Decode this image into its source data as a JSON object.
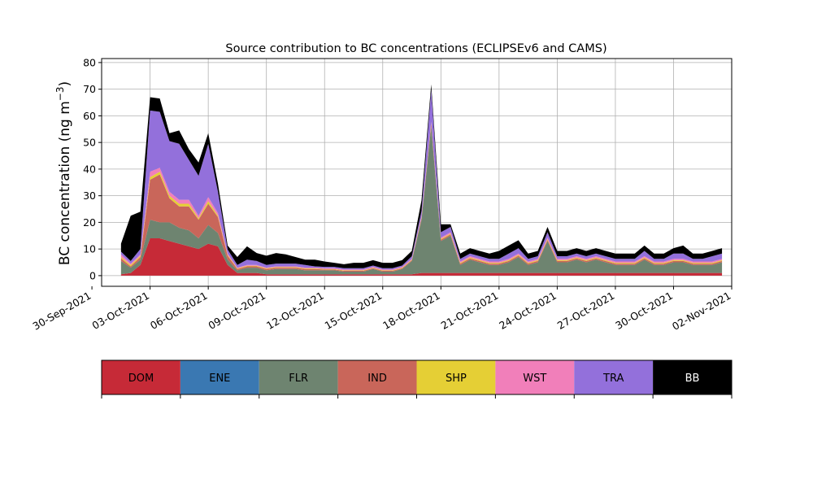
{
  "chart_data": {
    "type": "area",
    "stacked": true,
    "title": "Source contribution to BC concentrations (ECLIPSEv6 and CAMS)",
    "ylabel": "BC concentration (ng m",
    "ylabel_sup": "−3",
    "ylabel_close": ")",
    "xlabel": "",
    "ylim": [
      -4,
      81.5
    ],
    "xlim": [
      "2021-09-30T12:00",
      "2021-11-02T00:00"
    ],
    "grid": true,
    "y_ticks": [
      0,
      10,
      20,
      30,
      40,
      50,
      60,
      70,
      80
    ],
    "x_ticks": [
      "2021-09-30",
      "2021-10-03",
      "2021-10-06",
      "2021-10-09",
      "2021-10-12",
      "2021-10-15",
      "2021-10-18",
      "2021-10-21",
      "2021-10-24",
      "2021-10-27",
      "2021-10-30",
      "2021-11-02"
    ],
    "x_tick_labels": [
      "30-Sep-2021",
      "03-Oct-2021",
      "06-Oct-2021",
      "09-Oct-2021",
      "12-Oct-2021",
      "15-Oct-2021",
      "18-Oct-2021",
      "21-Oct-2021",
      "24-Oct-2021",
      "27-Oct-2021",
      "30-Oct-2021",
      "02-Nov-2021"
    ],
    "x": [
      "2021-10-01T12:00",
      "2021-10-02T00:00",
      "2021-10-02T12:00",
      "2021-10-03T00:00",
      "2021-10-03T12:00",
      "2021-10-04T00:00",
      "2021-10-04T12:00",
      "2021-10-05T00:00",
      "2021-10-05T12:00",
      "2021-10-06T00:00",
      "2021-10-06T12:00",
      "2021-10-07T00:00",
      "2021-10-07T12:00",
      "2021-10-08T00:00",
      "2021-10-08T12:00",
      "2021-10-09T00:00",
      "2021-10-09T12:00",
      "2021-10-10T00:00",
      "2021-10-10T12:00",
      "2021-10-11T00:00",
      "2021-10-11T12:00",
      "2021-10-12T00:00",
      "2021-10-12T12:00",
      "2021-10-13T00:00",
      "2021-10-13T12:00",
      "2021-10-14T00:00",
      "2021-10-14T12:00",
      "2021-10-15T00:00",
      "2021-10-15T12:00",
      "2021-10-16T00:00",
      "2021-10-16T12:00",
      "2021-10-17T00:00",
      "2021-10-17T12:00",
      "2021-10-18T00:00",
      "2021-10-18T12:00",
      "2021-10-19T00:00",
      "2021-10-19T12:00",
      "2021-10-20T00:00",
      "2021-10-20T12:00",
      "2021-10-21T00:00",
      "2021-10-21T12:00",
      "2021-10-22T00:00",
      "2021-10-22T12:00",
      "2021-10-23T00:00",
      "2021-10-23T12:00",
      "2021-10-24T00:00",
      "2021-10-24T12:00",
      "2021-10-25T00:00",
      "2021-10-25T12:00",
      "2021-10-26T00:00",
      "2021-10-26T12:00",
      "2021-10-27T00:00",
      "2021-10-27T12:00",
      "2021-10-28T00:00",
      "2021-10-28T12:00",
      "2021-10-29T00:00",
      "2021-10-29T12:00",
      "2021-10-30T00:00",
      "2021-10-30T12:00",
      "2021-10-31T00:00",
      "2021-10-31T12:00",
      "2021-11-01T00:00",
      "2021-11-01T12:00"
    ],
    "series": [
      {
        "name": "DOM",
        "color": "#c62a37",
        "values": [
          0.5,
          1,
          4,
          14,
          14,
          13,
          12,
          11,
          10,
          12,
          11,
          4,
          1,
          1,
          1,
          0.5,
          0.5,
          0.5,
          0.5,
          0.5,
          0.5,
          0.5,
          0.5,
          0.5,
          0.5,
          0.5,
          0.5,
          0.5,
          0.5,
          0.5,
          0.5,
          1,
          1,
          1,
          1,
          1,
          1,
          1,
          1,
          1,
          1,
          1,
          1,
          1,
          1,
          1,
          1,
          1,
          1,
          1,
          1,
          1,
          1,
          1,
          1,
          1,
          1,
          1,
          1,
          1,
          1,
          1,
          1
        ]
      },
      {
        "name": "ENE",
        "color": "#3a78b2",
        "values": [
          0,
          0,
          0,
          0,
          0,
          0,
          0,
          0,
          0,
          0,
          0,
          0,
          0,
          0,
          0,
          0,
          0,
          0,
          0,
          0,
          0,
          0,
          0,
          0,
          0,
          0,
          0,
          0,
          0,
          0,
          0,
          0,
          0,
          0,
          0,
          0,
          0,
          0,
          0,
          0,
          0,
          0,
          0,
          0,
          0,
          0,
          0,
          0,
          0,
          0,
          0,
          0,
          0,
          0,
          0,
          0,
          0,
          0,
          0,
          0,
          0,
          0,
          0
        ]
      },
      {
        "name": "FLR",
        "color": "#6e8470",
        "values": [
          5,
          2,
          2,
          7,
          6,
          7,
          6,
          6,
          4,
          7,
          5,
          2,
          1,
          2,
          2,
          1.5,
          2,
          2,
          2,
          1.5,
          1.5,
          1.5,
          1.5,
          1,
          1,
          1,
          2,
          1,
          1,
          2,
          5,
          20,
          55,
          12,
          14,
          3,
          5,
          4,
          3,
          3,
          4,
          6,
          3,
          4,
          12,
          4,
          4,
          5,
          4,
          5,
          4,
          3,
          3,
          3,
          5,
          3,
          3,
          4,
          4,
          3,
          3,
          3,
          4
        ]
      },
      {
        "name": "IND",
        "color": "#c9665a",
        "values": [
          1,
          0.5,
          1,
          15,
          18,
          9,
          8,
          9,
          7,
          8,
          6,
          1.5,
          0.5,
          0.5,
          0.5,
          0.5,
          0.5,
          0.5,
          0.5,
          0.5,
          0.5,
          0.3,
          0.3,
          0.3,
          0.3,
          0.3,
          0.3,
          0.3,
          0.3,
          0.3,
          0.3,
          0.5,
          1,
          0.5,
          0.5,
          0.5,
          0.5,
          0.5,
          0.5,
          0.5,
          0.5,
          0.5,
          0.5,
          0.5,
          0.5,
          0.5,
          0.5,
          0.5,
          0.5,
          0.5,
          0.5,
          0.5,
          0.5,
          0.5,
          0.5,
          0.5,
          0.5,
          0.5,
          0.5,
          0.5,
          0.5,
          0.5,
          0.5
        ]
      },
      {
        "name": "SHP",
        "color": "#e5cf35",
        "values": [
          0.5,
          0.5,
          0.5,
          1,
          1,
          1,
          1,
          1,
          0.5,
          1,
          0.5,
          0.3,
          0.2,
          0.2,
          0.2,
          0.2,
          0.2,
          0.2,
          0.2,
          0.2,
          0.2,
          0.2,
          0.2,
          0.2,
          0.2,
          0.2,
          0.2,
          0.2,
          0.2,
          0.2,
          0.2,
          0.3,
          0.3,
          0.3,
          0.3,
          0.3,
          0.3,
          0.3,
          0.3,
          0.3,
          0.3,
          0.3,
          0.3,
          0.3,
          0.3,
          0.3,
          0.3,
          0.3,
          0.3,
          0.3,
          0.3,
          0.3,
          0.3,
          0.3,
          0.3,
          0.3,
          0.3,
          0.3,
          0.3,
          0.3,
          0.3,
          0.3,
          0.3
        ]
      },
      {
        "name": "WST",
        "color": "#f17fba",
        "values": [
          1,
          0.5,
          0.5,
          2,
          1.5,
          1.5,
          1.5,
          1.5,
          1,
          1.5,
          1,
          0.5,
          0.3,
          0.3,
          0.3,
          0.3,
          0.3,
          0.3,
          0.3,
          0.3,
          0.3,
          0.3,
          0.3,
          0.3,
          0.3,
          0.3,
          0.3,
          0.3,
          0.3,
          0.3,
          0.3,
          0.5,
          0.5,
          0.5,
          0.5,
          0.5,
          0.5,
          0.5,
          0.5,
          0.5,
          0.5,
          0.5,
          0.5,
          0.5,
          0.5,
          0.5,
          0.5,
          0.5,
          0.5,
          0.5,
          0.5,
          0.5,
          0.5,
          0.5,
          0.5,
          0.5,
          0.5,
          0.5,
          0.5,
          0.5,
          0.5,
          0.5,
          0.5
        ]
      },
      {
        "name": "TRA",
        "color": "#9370db",
        "values": [
          1,
          1,
          2,
          23,
          21,
          19,
          21,
          15,
          15,
          20,
          8,
          1.5,
          1,
          2,
          1.5,
          1,
          1,
          1,
          1,
          1,
          0.5,
          0.5,
          0.5,
          0.5,
          0.5,
          0.5,
          0.5,
          0.5,
          0.5,
          0.5,
          1,
          2,
          12,
          2,
          2,
          1,
          1,
          1,
          1,
          1,
          2,
          2,
          1,
          1,
          2,
          1,
          1,
          1,
          1,
          1,
          1,
          1,
          1,
          1,
          2,
          1,
          1,
          2,
          2,
          1,
          1,
          2,
          2
        ]
      },
      {
        "name": "BB",
        "color": "#000000",
        "values": [
          3,
          17,
          14,
          5,
          5,
          3,
          5,
          4,
          5,
          4,
          3,
          1.5,
          3,
          5,
          3,
          3.5,
          4,
          3.5,
          2.5,
          2,
          2.5,
          2,
          1.5,
          1.5,
          2,
          2,
          2,
          2,
          2,
          2,
          2,
          4,
          2,
          3,
          1,
          2,
          2,
          2,
          2,
          3,
          3,
          3,
          2,
          2,
          2,
          2,
          2,
          2,
          2,
          2,
          2,
          2,
          2,
          2,
          2,
          2,
          2,
          2,
          3,
          2,
          2,
          2,
          2
        ]
      }
    ]
  },
  "legend": {
    "items": [
      {
        "label": "DOM",
        "color": "#c62a37",
        "text_color": "#000000"
      },
      {
        "label": "ENE",
        "color": "#3a78b2",
        "text_color": "#000000"
      },
      {
        "label": "FLR",
        "color": "#6e8470",
        "text_color": "#000000"
      },
      {
        "label": "IND",
        "color": "#c9665a",
        "text_color": "#000000"
      },
      {
        "label": "SHP",
        "color": "#e5cf35",
        "text_color": "#000000"
      },
      {
        "label": "WST",
        "color": "#f17fba",
        "text_color": "#000000"
      },
      {
        "label": "TRA",
        "color": "#9370db",
        "text_color": "#000000"
      },
      {
        "label": "BB",
        "color": "#000000",
        "text_color": "#ffffff"
      }
    ]
  }
}
